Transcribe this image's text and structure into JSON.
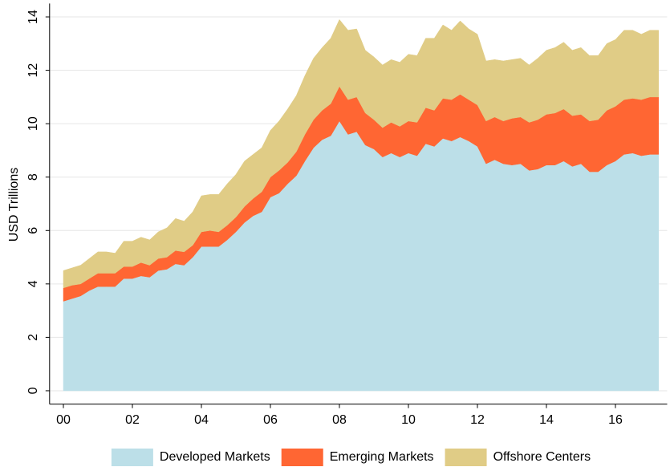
{
  "chart_data": {
    "type": "stacked_area",
    "y_label": "USD Trillions",
    "x": [
      2000,
      2000.25,
      2000.5,
      2000.75,
      2001,
      2001.25,
      2001.5,
      2001.75,
      2002,
      2002.25,
      2002.5,
      2002.75,
      2003,
      2003.25,
      2003.5,
      2003.75,
      2004,
      2004.25,
      2004.5,
      2004.75,
      2005,
      2005.25,
      2005.5,
      2005.75,
      2006,
      2006.25,
      2006.5,
      2006.75,
      2007,
      2007.25,
      2007.5,
      2007.75,
      2008,
      2008.25,
      2008.5,
      2008.75,
      2009,
      2009.25,
      2009.5,
      2009.75,
      2010,
      2010.25,
      2010.5,
      2010.75,
      2011,
      2011.25,
      2011.5,
      2011.75,
      2012,
      2012.25,
      2012.5,
      2012.75,
      2013,
      2013.25,
      2013.5,
      2013.75,
      2014,
      2014.25,
      2014.5,
      2014.75,
      2015,
      2015.25,
      2015.5,
      2015.75,
      2016,
      2016.25,
      2016.5,
      2016.75,
      2017,
      2017.25
    ],
    "series": [
      {
        "name": "Developed Markets",
        "color": "#bcdfe8",
        "values": [
          3.35,
          3.45,
          3.55,
          3.75,
          3.9,
          3.9,
          3.9,
          4.2,
          4.2,
          4.3,
          4.25,
          4.5,
          4.55,
          4.75,
          4.7,
          5.0,
          5.4,
          5.4,
          5.4,
          5.65,
          5.95,
          6.3,
          6.55,
          6.7,
          7.25,
          7.4,
          7.75,
          8.05,
          8.6,
          9.1,
          9.4,
          9.55,
          10.1,
          9.6,
          9.7,
          9.2,
          9.05,
          8.75,
          8.9,
          8.75,
          8.9,
          8.8,
          9.25,
          9.15,
          9.45,
          9.35,
          9.5,
          9.35,
          9.15,
          8.5,
          8.65,
          8.5,
          8.45,
          8.5,
          8.25,
          8.3,
          8.45,
          8.45,
          8.6,
          8.4,
          8.5,
          8.2,
          8.2,
          8.45,
          8.6,
          8.85,
          8.9,
          8.8,
          8.85,
          8.85
        ]
      },
      {
        "name": "Emerging Markets",
        "color": "#ff6633",
        "values": [
          0.5,
          0.5,
          0.45,
          0.45,
          0.5,
          0.5,
          0.5,
          0.45,
          0.45,
          0.5,
          0.45,
          0.45,
          0.45,
          0.5,
          0.5,
          0.45,
          0.55,
          0.6,
          0.55,
          0.55,
          0.55,
          0.6,
          0.65,
          0.75,
          0.75,
          0.85,
          0.8,
          0.9,
          1.0,
          1.05,
          1.1,
          1.2,
          1.3,
          1.3,
          1.3,
          1.2,
          1.1,
          1.1,
          1.15,
          1.15,
          1.2,
          1.25,
          1.35,
          1.35,
          1.5,
          1.55,
          1.6,
          1.55,
          1.55,
          1.6,
          1.6,
          1.6,
          1.75,
          1.75,
          1.8,
          1.85,
          1.9,
          1.95,
          1.95,
          1.9,
          1.85,
          1.9,
          1.95,
          2.05,
          2.05,
          2.05,
          2.05,
          2.1,
          2.15,
          2.15
        ]
      },
      {
        "name": "Offshore Centers",
        "color": "#e0cc86",
        "values": [
          0.65,
          0.65,
          0.7,
          0.75,
          0.8,
          0.8,
          0.75,
          0.95,
          0.95,
          0.95,
          0.95,
          1.0,
          1.1,
          1.2,
          1.15,
          1.25,
          1.35,
          1.35,
          1.4,
          1.55,
          1.6,
          1.7,
          1.65,
          1.65,
          1.75,
          1.85,
          2.0,
          2.1,
          2.2,
          2.3,
          2.35,
          2.45,
          2.5,
          2.6,
          2.55,
          2.35,
          2.35,
          2.35,
          2.35,
          2.4,
          2.5,
          2.5,
          2.6,
          2.7,
          2.75,
          2.6,
          2.75,
          2.65,
          2.65,
          2.25,
          2.15,
          2.25,
          2.2,
          2.2,
          2.15,
          2.3,
          2.4,
          2.45,
          2.5,
          2.45,
          2.5,
          2.45,
          2.4,
          2.5,
          2.5,
          2.6,
          2.55,
          2.45,
          2.5,
          2.5
        ]
      }
    ],
    "xlim": [
      1999.6,
      2017.5
    ],
    "xticks": [
      {
        "value": 2000,
        "label": "00"
      },
      {
        "value": 2002,
        "label": "02"
      },
      {
        "value": 2004,
        "label": "04"
      },
      {
        "value": 2006,
        "label": "06"
      },
      {
        "value": 2008,
        "label": "08"
      },
      {
        "value": 2010,
        "label": "10"
      },
      {
        "value": 2012,
        "label": "12"
      },
      {
        "value": 2014,
        "label": "14"
      },
      {
        "value": 2016,
        "label": "16"
      }
    ],
    "ylim": [
      -0.5,
      14.5
    ],
    "yticks": [
      0,
      2,
      4,
      6,
      8,
      10,
      12,
      14
    ],
    "grid": true,
    "legend": "bottom"
  }
}
